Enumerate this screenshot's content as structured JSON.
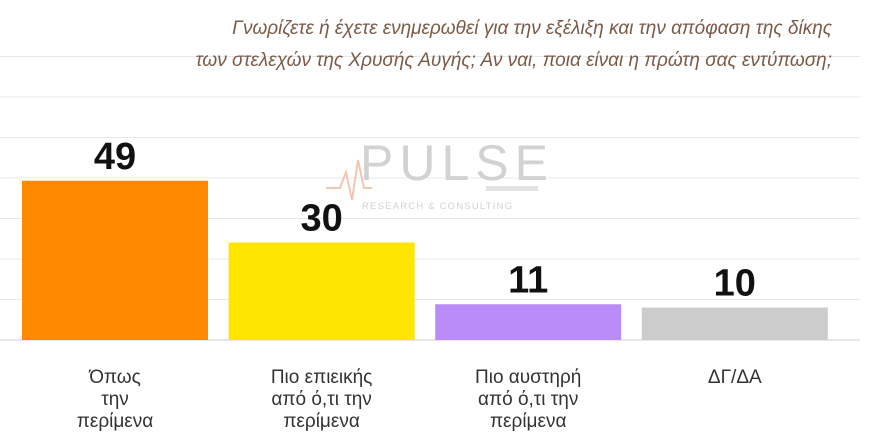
{
  "chart_data": {
    "type": "bar",
    "title_lines": [
      "Γνωρίζετε ή έχετε ενημερωθεί για την εξέλιξη και την απόφαση της δίκης",
      "των στελεχών της Χρυσής Αυγής; Αν ναι, ποια είναι η πρώτη σας εντύπωση;"
    ],
    "categories": [
      [
        "Όπως",
        "την",
        "περίμενα"
      ],
      [
        "Πιο επιεικής",
        "από ό,τι την",
        "περίμενα"
      ],
      [
        "Πιο αυστηρή",
        "από ό,τι την",
        "περίμενα"
      ],
      [
        "ΔΓ/ΔΑ"
      ]
    ],
    "values": [
      49,
      30,
      11,
      10
    ],
    "colors": [
      "#ff8a00",
      "#ffe600",
      "#b98cf7",
      "#cccccc"
    ],
    "ylim": [
      0,
      50
    ],
    "grid": true,
    "xlabel": "",
    "ylabel": ""
  },
  "watermark": {
    "name": "PULSE",
    "tagline": "RESEARCH & CONSULTING"
  }
}
